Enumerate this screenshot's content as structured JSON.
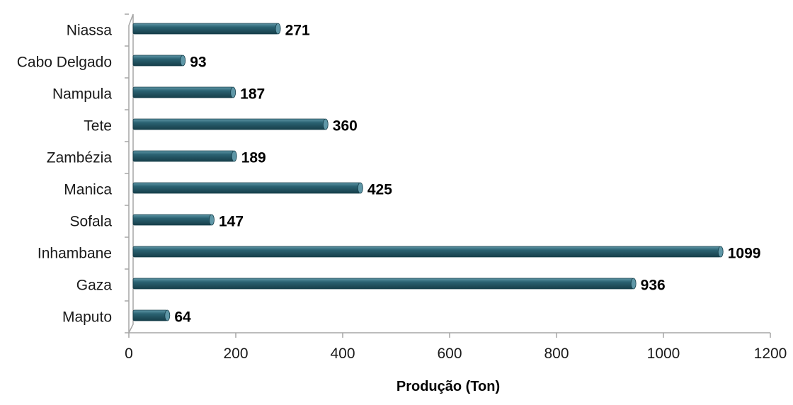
{
  "chart_data": {
    "type": "bar",
    "orientation": "horizontal",
    "categories": [
      "Niassa",
      "Cabo Delgado",
      "Nampula",
      "Tete",
      "Zambézia",
      "Manica",
      "Sofala",
      "Inhambane",
      "Gaza",
      "Maputo"
    ],
    "values": [
      271,
      93,
      187,
      360,
      189,
      425,
      147,
      1099,
      936,
      64
    ],
    "data_labels": [
      "271",
      "93",
      "187",
      "360",
      "189",
      "425",
      "147",
      "1099",
      "936",
      "64"
    ],
    "title": "",
    "xlabel": "Produção (Ton)",
    "ylabel": "",
    "xlim": [
      0,
      1200
    ],
    "xticks": [
      0,
      200,
      400,
      600,
      800,
      1000,
      1200
    ],
    "grid": false,
    "legend": "none",
    "bar_color": "#2b6272",
    "bar_highlight": "#5f97a7",
    "bar_shadow": "#163e4a",
    "axis_color": "#a6a6a6"
  }
}
